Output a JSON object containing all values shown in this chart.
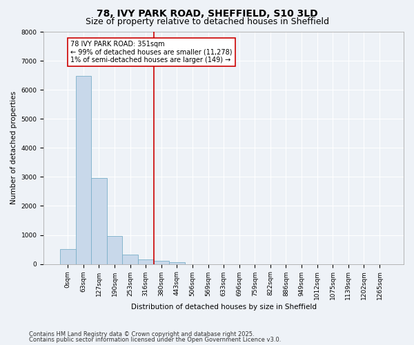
{
  "title": "78, IVY PARK ROAD, SHEFFIELD, S10 3LD",
  "subtitle": "Size of property relative to detached houses in Sheffield",
  "xlabel": "Distribution of detached houses by size in Sheffield",
  "ylabel": "Number of detached properties",
  "bar_color": "#c8d8ea",
  "bar_edgecolor": "#7aafc8",
  "background_color": "#eef2f7",
  "grid_color": "#ffffff",
  "categories": [
    "0sqm",
    "63sqm",
    "127sqm",
    "190sqm",
    "253sqm",
    "316sqm",
    "380sqm",
    "443sqm",
    "506sqm",
    "569sqm",
    "633sqm",
    "696sqm",
    "759sqm",
    "822sqm",
    "886sqm",
    "949sqm",
    "1012sqm",
    "1075sqm",
    "1139sqm",
    "1202sqm",
    "1265sqm"
  ],
  "values": [
    520,
    6480,
    2960,
    960,
    330,
    150,
    100,
    55,
    0,
    0,
    0,
    0,
    0,
    0,
    0,
    0,
    0,
    0,
    0,
    0,
    0
  ],
  "vline_x": 5.5,
  "vline_color": "#cc0000",
  "annotation_text": "78 IVY PARK ROAD: 351sqm\n← 99% of detached houses are smaller (11,278)\n1% of semi-detached houses are larger (149) →",
  "annotation_box_color": "#ffffff",
  "annotation_box_edgecolor": "#cc0000",
  "ylim": [
    0,
    8000
  ],
  "yticks": [
    0,
    1000,
    2000,
    3000,
    4000,
    5000,
    6000,
    7000,
    8000
  ],
  "footer_line1": "Contains HM Land Registry data © Crown copyright and database right 2025.",
  "footer_line2": "Contains public sector information licensed under the Open Government Licence v3.0.",
  "title_fontsize": 10,
  "subtitle_fontsize": 9,
  "axis_label_fontsize": 7.5,
  "tick_fontsize": 6.5,
  "annotation_fontsize": 7,
  "footer_fontsize": 6
}
